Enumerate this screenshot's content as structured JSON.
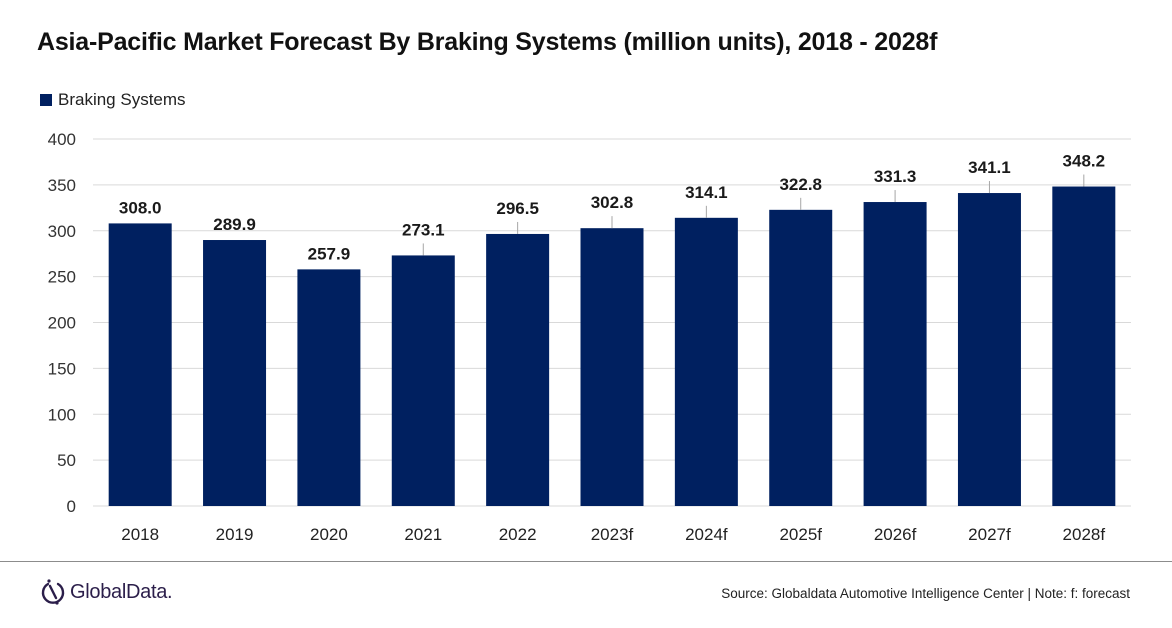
{
  "header": {
    "title": "Asia-Pacific Market Forecast By Braking Systems (million units), 2018 - 2028f"
  },
  "legend": {
    "items": [
      {
        "label": "Braking Systems",
        "color": "#002060"
      }
    ]
  },
  "footer": {
    "logo_text": "GlobalData.",
    "logo_icon": "globaldata-logo-icon",
    "source": "Source: Globaldata Automotive  Intelligence Center | Note: f: forecast"
  },
  "chart_data": {
    "type": "bar",
    "title": "Asia-Pacific Market Forecast By Braking Systems (million units), 2018 - 2028f",
    "xlabel": "",
    "ylabel": "",
    "categories": [
      "2018",
      "2019",
      "2020",
      "2021",
      "2022",
      "2023f",
      "2024f",
      "2025f",
      "2026f",
      "2027f",
      "2028f"
    ],
    "series": [
      {
        "name": "Braking Systems",
        "color": "#002060",
        "values": [
          308.0,
          289.9,
          257.9,
          273.1,
          296.5,
          302.8,
          314.1,
          322.8,
          331.3,
          341.1,
          348.2
        ],
        "labels": [
          "308.0",
          "289.9",
          "257.9",
          "273.1",
          "296.5",
          "302.8",
          "314.1",
          "322.8",
          "331.3",
          "341.1",
          "348.2"
        ]
      }
    ],
    "ylim": [
      0,
      400
    ],
    "yticks": [
      0,
      50,
      100,
      150,
      200,
      250,
      300,
      350,
      400
    ],
    "grid": true,
    "legend_position": "top-left"
  }
}
